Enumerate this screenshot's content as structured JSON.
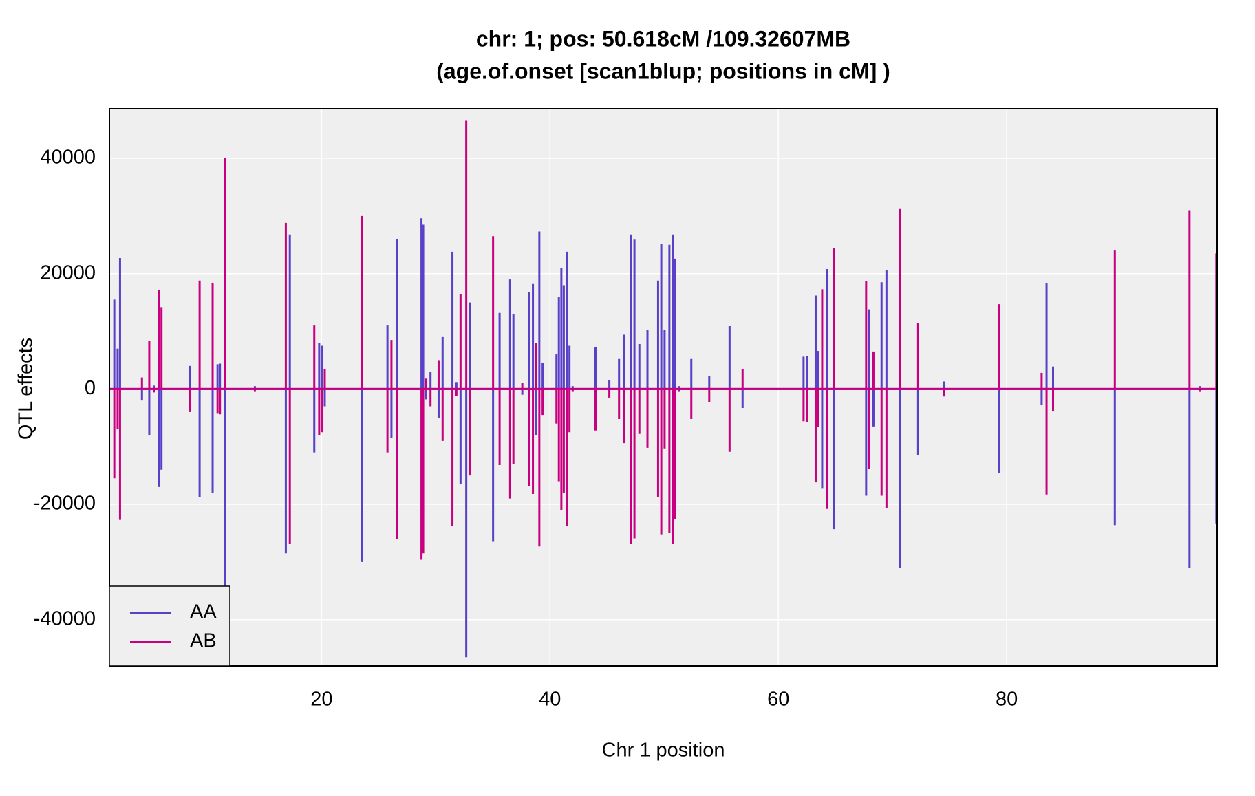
{
  "chart_data": {
    "type": "stem",
    "title": "chr: 1; pos: 50.618cM /109.32607MB",
    "subtitle": "(age.of.onset [scan1blup; positions in cM] )",
    "x_label": "Chr 1 position",
    "y_label": "QTL effects",
    "x": [
      1.85,
      2.14,
      2.35,
      4.27,
      4.91,
      5.34,
      5.77,
      5.98,
      8.47,
      9.32,
      10.46,
      10.89,
      11.1,
      11.53,
      14.16,
      16.87,
      17.22,
      19.36,
      19.79,
      20.07,
      20.28,
      23.56,
      25.77,
      26.12,
      26.62,
      28.75,
      28.9,
      29.11,
      29.54,
      30.25,
      30.6,
      31.46,
      31.81,
      32.17,
      32.67,
      33.02,
      35.02,
      35.59,
      36.51,
      36.8,
      37.58,
      38.15,
      38.51,
      38.79,
      39.07,
      39.36,
      40.57,
      40.78,
      41.0,
      41.21,
      41.49,
      41.71,
      41.99,
      43.99,
      45.2,
      46.05,
      46.48,
      47.12,
      47.4,
      47.83,
      48.54,
      49.47,
      49.75,
      50.04,
      50.46,
      50.75,
      50.96,
      51.32,
      52.38,
      53.95,
      55.73,
      56.87,
      62.21,
      62.49,
      63.27,
      63.49,
      63.84,
      64.27,
      64.84,
      67.69,
      67.97,
      68.33,
      69.04,
      69.47,
      70.68,
      72.24,
      74.52,
      79.36,
      83.06,
      83.49,
      84.06,
      89.47,
      96.01,
      96.94,
      98.36
    ],
    "series": [
      {
        "name": "AA",
        "color": "#5a3fc8",
        "values": [
          15500,
          7000,
          22700,
          -2000,
          -8000,
          600,
          -17000,
          -14000,
          4000,
          -18700,
          -18000,
          4300,
          4400,
          -40000,
          500,
          -28500,
          26800,
          -11000,
          8000,
          7500,
          -3000,
          -30000,
          11000,
          -8500,
          26000,
          29600,
          28500,
          -1800,
          3000,
          -5000,
          9000,
          23800,
          1200,
          -16500,
          -46500,
          15000,
          -26500,
          13200,
          19000,
          13000,
          -1000,
          16800,
          18200,
          -8000,
          27300,
          4500,
          6000,
          16000,
          21000,
          18000,
          23800,
          7500,
          500,
          7200,
          1500,
          5200,
          9400,
          26800,
          25900,
          7800,
          10200,
          18800,
          25200,
          10300,
          25000,
          26800,
          22600,
          500,
          5200,
          2300,
          10900,
          -3300,
          5600,
          5700,
          16200,
          6600,
          -17300,
          20800,
          -24300,
          -18500,
          13800,
          -6500,
          18500,
          20600,
          -31000,
          -11500,
          1300,
          -14600,
          -2700,
          18300,
          3900,
          -23600,
          -31000,
          500,
          -23300
        ]
      },
      {
        "name": "AB",
        "color": "#c8007f",
        "values": [
          -15500,
          -7000,
          -22700,
          2000,
          8300,
          -600,
          17200,
          14200,
          -4000,
          18800,
          18300,
          -4300,
          -4400,
          40000,
          -500,
          28800,
          -26800,
          11000,
          -8000,
          -7500,
          3500,
          30000,
          -11000,
          8500,
          -26000,
          -29600,
          -28500,
          1800,
          -3000,
          5000,
          -9000,
          -23800,
          -1200,
          16500,
          46500,
          -15000,
          26500,
          -13200,
          -19000,
          -13000,
          1000,
          -16800,
          -18200,
          8000,
          -27300,
          -4500,
          -6000,
          -16000,
          -21000,
          -18000,
          -23800,
          -7500,
          -500,
          -7200,
          -1500,
          -5200,
          -9400,
          -26800,
          -25900,
          -7800,
          -10200,
          -18800,
          -25200,
          -10300,
          -25000,
          -26800,
          -22600,
          -500,
          -5200,
          -2300,
          -10900,
          3500,
          -5600,
          -5700,
          -16200,
          -6600,
          17300,
          -20800,
          24400,
          18700,
          -13800,
          6500,
          -18500,
          -20600,
          31200,
          11500,
          -1300,
          14700,
          2800,
          -18300,
          -3900,
          24000,
          31000,
          -500,
          23500
        ]
      }
    ],
    "xlim": [
      1.42,
      98.43
    ],
    "xticks": [
      20,
      40,
      60,
      80
    ],
    "ylim": [
      -48028,
      48592
    ],
    "yticks": [
      -40000,
      -20000,
      0,
      20000,
      40000
    ],
    "grid": true,
    "legend": "bottom-left"
  }
}
